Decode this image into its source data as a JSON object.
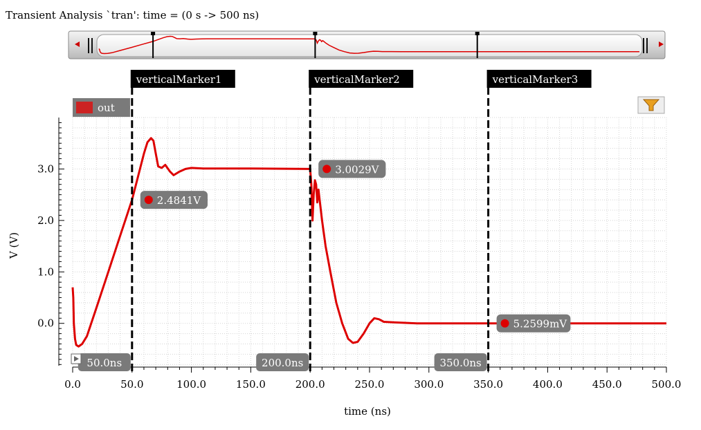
{
  "window": {
    "title": "Transient Analysis `tran': time = (0 s -> 500 ns)"
  },
  "legend": {
    "label": "out",
    "color": "#cc2222"
  },
  "colors": {
    "trace": "#dd0000",
    "label_bg": "#7a7a7a",
    "marker_bg": "#000000",
    "filter": "#e8a020"
  },
  "chart_data": {
    "type": "line",
    "xlabel": "time (ns)",
    "ylabel": "V (V)",
    "xlim": [
      0,
      500
    ],
    "ylim": [
      -0.85,
      4.0
    ],
    "x_ticks": [
      0,
      50,
      100,
      150,
      200,
      250,
      300,
      350,
      400,
      450,
      500
    ],
    "x_tick_labels": [
      "0.0",
      "50.0",
      "100.0",
      "150.0",
      "200.0",
      "250.0",
      "300.0",
      "350.0",
      "400.0",
      "450.0",
      "500.0"
    ],
    "y_ticks": [
      0,
      1,
      2,
      3
    ],
    "y_tick_labels": [
      "0.0",
      "1.0",
      "2.0",
      "3.0"
    ],
    "grid": true,
    "legend_position": "top-left",
    "series": [
      {
        "name": "out",
        "x": [
          0,
          0.5,
          1,
          2,
          3,
          5,
          8,
          12,
          20,
          30,
          40,
          50,
          55,
          60,
          63,
          66,
          68,
          70,
          72,
          75,
          78,
          82,
          85,
          90,
          95,
          100,
          110,
          150,
          200,
          201,
          202,
          203,
          204,
          205,
          206,
          207,
          208,
          210,
          213,
          217,
          222,
          227,
          232,
          236,
          240,
          245,
          250,
          254,
          258,
          262,
          270,
          280,
          290,
          300,
          350,
          400,
          450,
          500
        ],
        "y": [
          0.7,
          0.5,
          0.0,
          -0.3,
          -0.42,
          -0.45,
          -0.4,
          -0.25,
          0.3,
          1.0,
          1.7,
          2.4,
          2.85,
          3.3,
          3.52,
          3.6,
          3.55,
          3.3,
          3.05,
          3.02,
          3.08,
          2.95,
          2.88,
          2.95,
          3.0,
          3.02,
          3.01,
          3.01,
          3.0,
          2.7,
          2.0,
          2.5,
          2.78,
          2.7,
          2.35,
          2.6,
          2.4,
          2.0,
          1.5,
          1.0,
          0.4,
          0.0,
          -0.3,
          -0.38,
          -0.36,
          -0.2,
          0.0,
          0.1,
          0.08,
          0.03,
          0.02,
          0.01,
          0.0,
          0.0,
          0.0,
          0.0,
          0.0,
          0.0
        ]
      }
    ],
    "vertical_markers": [
      {
        "name": "verticalMarker1",
        "x": 50,
        "bottom_label": "50.0ns",
        "value_label": "2.4841V"
      },
      {
        "name": "verticalMarker2",
        "x": 200,
        "bottom_label": "200.0ns",
        "value_label": "3.0029V"
      },
      {
        "name": "verticalMarker3",
        "x": 350,
        "bottom_label": "350.0ns",
        "value_label": "5.2599mV"
      }
    ],
    "overview": {
      "markers": [
        50,
        200,
        350
      ]
    }
  }
}
